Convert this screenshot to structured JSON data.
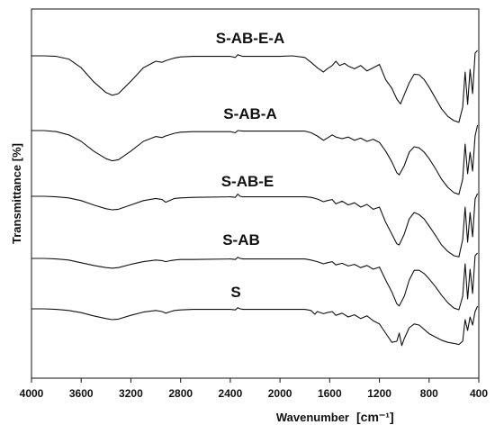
{
  "chart_data": {
    "type": "line",
    "title": "",
    "xlabel": "Wavenumber",
    "xunit": "[cm⁻¹]",
    "ylabel": "Transmittance [%]",
    "xlim": [
      4000,
      400
    ],
    "xreversed": true,
    "xticks": [
      4000,
      3600,
      3200,
      2800,
      2400,
      2000,
      1600,
      1200,
      800,
      400
    ],
    "yticks": [],
    "grid": false,
    "legend": "none",
    "series": [
      {
        "name": "S-AB-E-A",
        "points": [
          [
            4000,
            0
          ],
          [
            3900,
            0
          ],
          [
            3800,
            -1
          ],
          [
            3700,
            -6
          ],
          [
            3600,
            -22
          ],
          [
            3500,
            -48
          ],
          [
            3400,
            -68
          ],
          [
            3350,
            -73
          ],
          [
            3300,
            -70
          ],
          [
            3200,
            -47
          ],
          [
            3100,
            -22
          ],
          [
            3000,
            -10
          ],
          [
            2950,
            -12
          ],
          [
            2920,
            -9
          ],
          [
            2850,
            -4
          ],
          [
            2800,
            -2
          ],
          [
            2700,
            -1
          ],
          [
            2400,
            -1
          ],
          [
            2360,
            -3
          ],
          [
            2340,
            2
          ],
          [
            2300,
            -1
          ],
          [
            2000,
            -1
          ],
          [
            1900,
            0
          ],
          [
            1800,
            -3
          ],
          [
            1750,
            -12
          ],
          [
            1700,
            -22
          ],
          [
            1650,
            -30
          ],
          [
            1620,
            -24
          ],
          [
            1580,
            -18
          ],
          [
            1550,
            -10
          ],
          [
            1520,
            -18
          ],
          [
            1480,
            -14
          ],
          [
            1450,
            -19
          ],
          [
            1400,
            -24
          ],
          [
            1350,
            -18
          ],
          [
            1300,
            -28
          ],
          [
            1250,
            -22
          ],
          [
            1200,
            -16
          ],
          [
            1150,
            -44
          ],
          [
            1100,
            -60
          ],
          [
            1060,
            -80
          ],
          [
            1030,
            -89
          ],
          [
            1000,
            -72
          ],
          [
            960,
            -50
          ],
          [
            920,
            -34
          ],
          [
            880,
            -35
          ],
          [
            840,
            -44
          ],
          [
            800,
            -58
          ],
          [
            750,
            -78
          ],
          [
            700,
            -98
          ],
          [
            650,
            -112
          ],
          [
            600,
            -120
          ],
          [
            560,
            -123
          ],
          [
            530,
            -95
          ],
          [
            510,
            -30
          ],
          [
            490,
            -90
          ],
          [
            470,
            -25
          ],
          [
            450,
            -70
          ],
          [
            430,
            5
          ],
          [
            410,
            10
          ]
        ]
      },
      {
        "name": "S-AB-A",
        "points": [
          [
            4000,
            0
          ],
          [
            3900,
            0
          ],
          [
            3800,
            -2
          ],
          [
            3700,
            -8
          ],
          [
            3600,
            -20
          ],
          [
            3500,
            -38
          ],
          [
            3400,
            -52
          ],
          [
            3350,
            -56
          ],
          [
            3300,
            -54
          ],
          [
            3200,
            -38
          ],
          [
            3100,
            -20
          ],
          [
            3000,
            -11
          ],
          [
            2950,
            -13
          ],
          [
            2920,
            -10
          ],
          [
            2850,
            -5
          ],
          [
            2800,
            -3
          ],
          [
            2700,
            -2
          ],
          [
            2400,
            -2
          ],
          [
            2360,
            -4
          ],
          [
            2340,
            0
          ],
          [
            2300,
            -1
          ],
          [
            2000,
            -1
          ],
          [
            1800,
            -1
          ],
          [
            1750,
            -4
          ],
          [
            1700,
            -10
          ],
          [
            1650,
            -18
          ],
          [
            1620,
            -14
          ],
          [
            1580,
            -8
          ],
          [
            1550,
            -12
          ],
          [
            1500,
            -15
          ],
          [
            1450,
            -12
          ],
          [
            1400,
            -18
          ],
          [
            1350,
            -14
          ],
          [
            1300,
            -20
          ],
          [
            1250,
            -16
          ],
          [
            1200,
            -22
          ],
          [
            1150,
            -38
          ],
          [
            1100,
            -58
          ],
          [
            1060,
            -78
          ],
          [
            1040,
            -82
          ],
          [
            1000,
            -65
          ],
          [
            960,
            -40
          ],
          [
            920,
            -30
          ],
          [
            880,
            -32
          ],
          [
            840,
            -40
          ],
          [
            800,
            -52
          ],
          [
            750,
            -70
          ],
          [
            700,
            -90
          ],
          [
            650,
            -105
          ],
          [
            600,
            -115
          ],
          [
            560,
            -118
          ],
          [
            530,
            -90
          ],
          [
            510,
            -25
          ],
          [
            490,
            -80
          ],
          [
            470,
            -40
          ],
          [
            450,
            -75
          ],
          [
            430,
            -10
          ],
          [
            410,
            10
          ]
        ]
      },
      {
        "name": "S-AB-E",
        "points": [
          [
            4000,
            0
          ],
          [
            3900,
            0
          ],
          [
            3800,
            -1
          ],
          [
            3700,
            -3
          ],
          [
            3600,
            -8
          ],
          [
            3500,
            -16
          ],
          [
            3400,
            -23
          ],
          [
            3350,
            -25
          ],
          [
            3300,
            -24
          ],
          [
            3200,
            -16
          ],
          [
            3100,
            -8
          ],
          [
            3000,
            -4
          ],
          [
            2950,
            -6
          ],
          [
            2920,
            -11
          ],
          [
            2880,
            -7
          ],
          [
            2850,
            -4
          ],
          [
            2800,
            -3
          ],
          [
            2700,
            -2
          ],
          [
            2400,
            -1
          ],
          [
            2360,
            -2
          ],
          [
            2340,
            4
          ],
          [
            2320,
            0
          ],
          [
            2300,
            -1
          ],
          [
            2000,
            -1
          ],
          [
            1800,
            -1
          ],
          [
            1750,
            -2
          ],
          [
            1700,
            -5
          ],
          [
            1650,
            -10
          ],
          [
            1620,
            -8
          ],
          [
            1580,
            -6
          ],
          [
            1550,
            -14
          ],
          [
            1500,
            -9
          ],
          [
            1450,
            -16
          ],
          [
            1400,
            -12
          ],
          [
            1350,
            -20
          ],
          [
            1300,
            -15
          ],
          [
            1250,
            -24
          ],
          [
            1200,
            -20
          ],
          [
            1150,
            -48
          ],
          [
            1100,
            -70
          ],
          [
            1060,
            -88
          ],
          [
            1040,
            -90
          ],
          [
            1000,
            -70
          ],
          [
            960,
            -42
          ],
          [
            920,
            -30
          ],
          [
            880,
            -34
          ],
          [
            840,
            -42
          ],
          [
            800,
            -55
          ],
          [
            750,
            -72
          ],
          [
            700,
            -90
          ],
          [
            650,
            -102
          ],
          [
            600,
            -110
          ],
          [
            560,
            -112
          ],
          [
            530,
            -80
          ],
          [
            510,
            -20
          ],
          [
            490,
            -85
          ],
          [
            470,
            -30
          ],
          [
            450,
            -75
          ],
          [
            430,
            -5
          ],
          [
            410,
            5
          ]
        ]
      },
      {
        "name": "S-AB",
        "points": [
          [
            4000,
            0
          ],
          [
            3900,
            0
          ],
          [
            3800,
            -1
          ],
          [
            3700,
            -3
          ],
          [
            3600,
            -8
          ],
          [
            3500,
            -13
          ],
          [
            3400,
            -17
          ],
          [
            3350,
            -18
          ],
          [
            3300,
            -17
          ],
          [
            3200,
            -11
          ],
          [
            3100,
            -6
          ],
          [
            3000,
            -3
          ],
          [
            2950,
            -4
          ],
          [
            2920,
            -6
          ],
          [
            2880,
            -4
          ],
          [
            2850,
            -3
          ],
          [
            2800,
            -2
          ],
          [
            2700,
            -2
          ],
          [
            2400,
            -1
          ],
          [
            2360,
            -2
          ],
          [
            2340,
            2
          ],
          [
            2320,
            0
          ],
          [
            2300,
            -1
          ],
          [
            2000,
            -1
          ],
          [
            1800,
            -1
          ],
          [
            1750,
            -3
          ],
          [
            1700,
            -6
          ],
          [
            1650,
            -10
          ],
          [
            1620,
            -8
          ],
          [
            1580,
            -6
          ],
          [
            1550,
            -12
          ],
          [
            1500,
            -9
          ],
          [
            1450,
            -14
          ],
          [
            1400,
            -11
          ],
          [
            1350,
            -17
          ],
          [
            1300,
            -13
          ],
          [
            1250,
            -20
          ],
          [
            1200,
            -16
          ],
          [
            1150,
            -40
          ],
          [
            1100,
            -62
          ],
          [
            1060,
            -84
          ],
          [
            1040,
            -88
          ],
          [
            1000,
            -70
          ],
          [
            960,
            -40
          ],
          [
            920,
            -22
          ],
          [
            880,
            -22
          ],
          [
            840,
            -28
          ],
          [
            800,
            -38
          ],
          [
            750,
            -52
          ],
          [
            700,
            -68
          ],
          [
            650,
            -82
          ],
          [
            600,
            -92
          ],
          [
            560,
            -95
          ],
          [
            530,
            -70
          ],
          [
            510,
            -10
          ],
          [
            490,
            -75
          ],
          [
            470,
            -20
          ],
          [
            450,
            -65
          ],
          [
            430,
            5
          ],
          [
            410,
            10
          ]
        ]
      },
      {
        "name": "S",
        "points": [
          [
            4000,
            0
          ],
          [
            3900,
            0
          ],
          [
            3800,
            -1
          ],
          [
            3700,
            -3
          ],
          [
            3600,
            -7
          ],
          [
            3500,
            -13
          ],
          [
            3400,
            -18
          ],
          [
            3350,
            -20
          ],
          [
            3300,
            -19
          ],
          [
            3200,
            -12
          ],
          [
            3100,
            -6
          ],
          [
            3000,
            -3
          ],
          [
            2950,
            -5
          ],
          [
            2920,
            -8
          ],
          [
            2880,
            -5
          ],
          [
            2850,
            -3
          ],
          [
            2800,
            -2
          ],
          [
            2700,
            -1
          ],
          [
            2400,
            -1
          ],
          [
            2360,
            -2
          ],
          [
            2340,
            2
          ],
          [
            2320,
            0
          ],
          [
            2300,
            -1
          ],
          [
            2000,
            -1
          ],
          [
            1800,
            -1
          ],
          [
            1750,
            -3
          ],
          [
            1720,
            -10
          ],
          [
            1700,
            -5
          ],
          [
            1650,
            -9
          ],
          [
            1620,
            -7
          ],
          [
            1580,
            -5
          ],
          [
            1550,
            -12
          ],
          [
            1500,
            -8
          ],
          [
            1450,
            -15
          ],
          [
            1400,
            -11
          ],
          [
            1350,
            -18
          ],
          [
            1300,
            -13
          ],
          [
            1250,
            -22
          ],
          [
            1200,
            -28
          ],
          [
            1150,
            -45
          ],
          [
            1100,
            -62
          ],
          [
            1060,
            -60
          ],
          [
            1040,
            -45
          ],
          [
            1020,
            -68
          ],
          [
            1000,
            -55
          ],
          [
            960,
            -35
          ],
          [
            920,
            -28
          ],
          [
            880,
            -30
          ],
          [
            840,
            -38
          ],
          [
            800,
            -46
          ],
          [
            750,
            -52
          ],
          [
            700,
            -58
          ],
          [
            650,
            -62
          ],
          [
            600,
            -64
          ],
          [
            560,
            -66
          ],
          [
            530,
            -60
          ],
          [
            510,
            -20
          ],
          [
            490,
            -40
          ],
          [
            470,
            -15
          ],
          [
            450,
            -30
          ],
          [
            430,
            -5
          ],
          [
            410,
            5
          ]
        ]
      }
    ]
  }
}
